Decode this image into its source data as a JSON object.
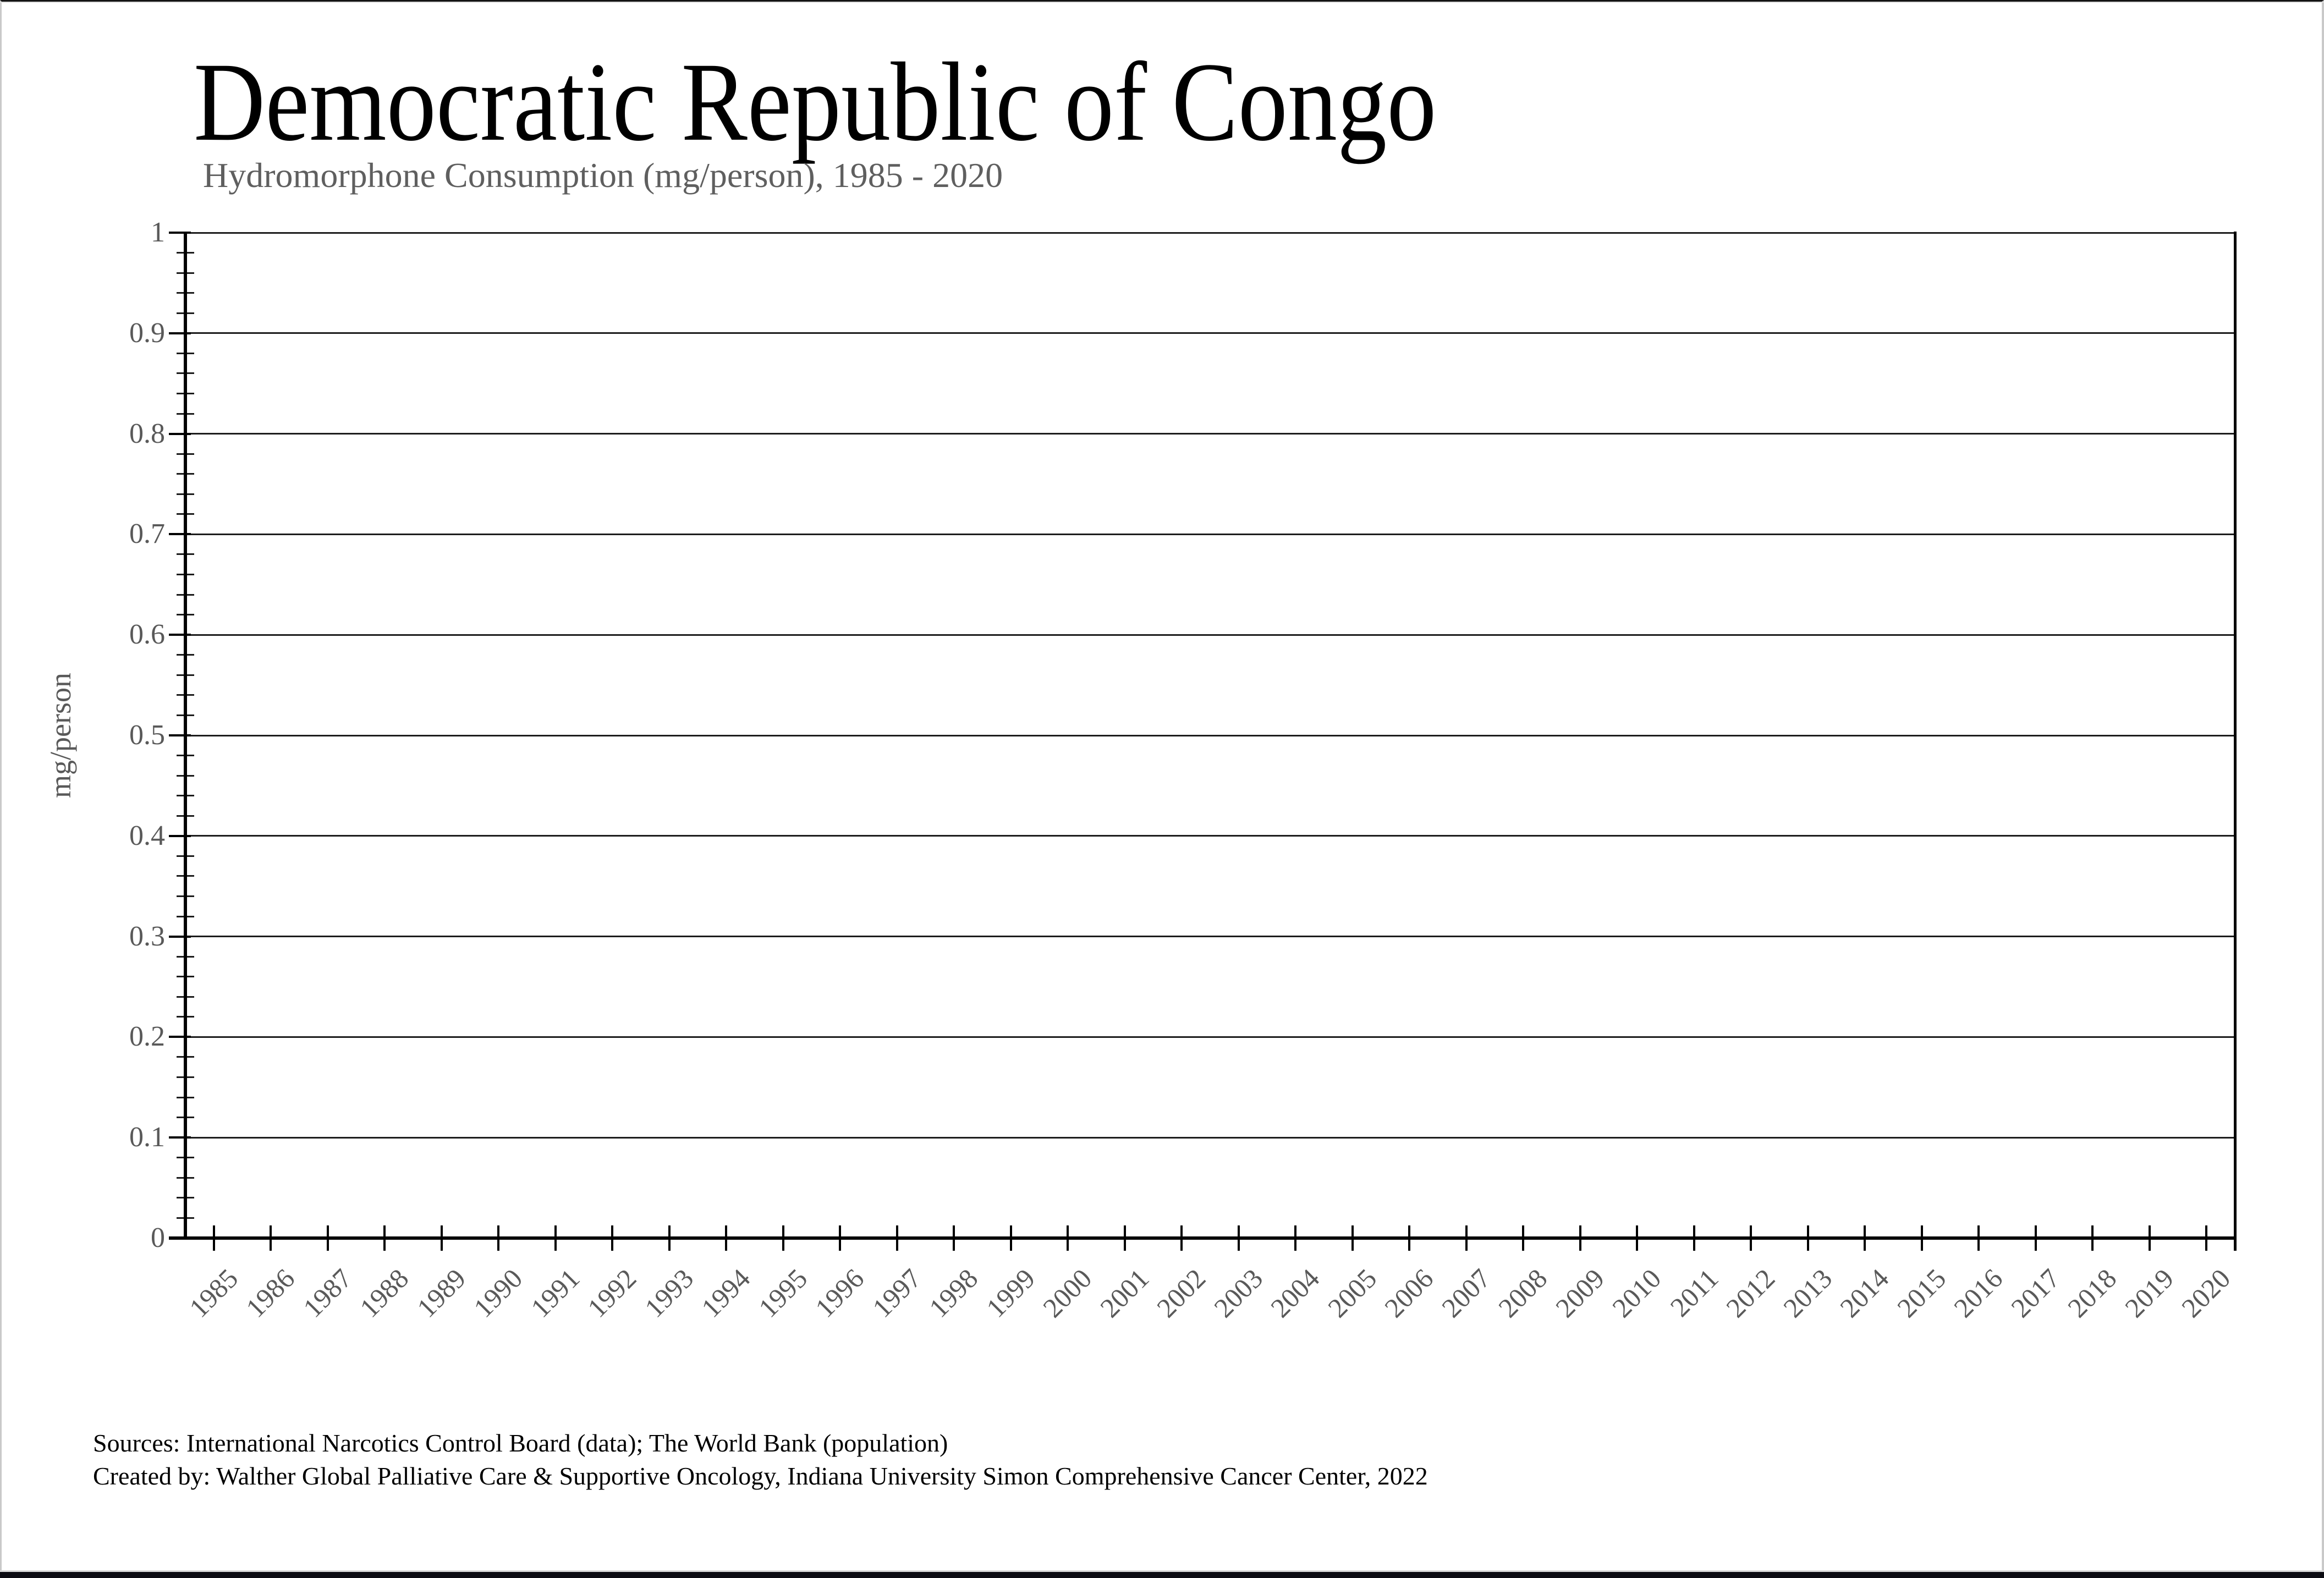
{
  "page": {
    "background": "#ffffff",
    "frame_top_color": "#141414",
    "frame_side_color": "#c9c9c9",
    "bottom_bar_color": "#0b0b12",
    "bottom_line_color": "#d9d9d9"
  },
  "header": {
    "title": "Democratic Republic of Congo",
    "subtitle": "Hydromorphone Consumption (mg/person), 1985 - 2020"
  },
  "chart_data": {
    "type": "line",
    "title": "Democratic Republic of Congo",
    "subtitle": "Hydromorphone Consumption (mg/person), 1985 - 2020",
    "categories": [
      "1985",
      "1986",
      "1987",
      "1988",
      "1989",
      "1990",
      "1991",
      "1992",
      "1993",
      "1994",
      "1995",
      "1996",
      "1997",
      "1998",
      "1999",
      "2000",
      "2001",
      "2002",
      "2003",
      "2004",
      "2005",
      "2006",
      "2007",
      "2008",
      "2009",
      "2010",
      "2011",
      "2012",
      "2013",
      "2014",
      "2015",
      "2016",
      "2017",
      "2018",
      "2019",
      "2020"
    ],
    "series": [
      {
        "name": "Hydromorphone Consumption (mg/person)",
        "values": [
          0,
          0,
          0,
          0,
          0,
          0,
          0,
          0,
          0,
          0,
          0,
          0,
          0,
          0,
          0,
          0,
          0,
          0,
          0,
          0,
          0,
          0,
          0,
          0,
          0,
          0,
          0,
          0,
          0,
          0,
          0,
          0,
          0,
          0,
          0,
          0
        ]
      }
    ],
    "xlabel": "",
    "ylabel": "mg/person",
    "ylim": [
      0,
      1
    ],
    "ytick_step": 0.1,
    "yminor_tick_step": 0.02,
    "grid": "horizontal-major-on",
    "legend": "none",
    "axis_color": "#000000",
    "gridline_color": "#1c1c1c",
    "tick_label_color": "#595959"
  },
  "footer": {
    "line1": "Sources: International Narcotics Control Board (data); The World Bank (population)",
    "line2": "Created by: Walther Global Palliative Care & Supportive Oncology, Indiana University Simon Comprehensive Cancer Center, 2022"
  }
}
